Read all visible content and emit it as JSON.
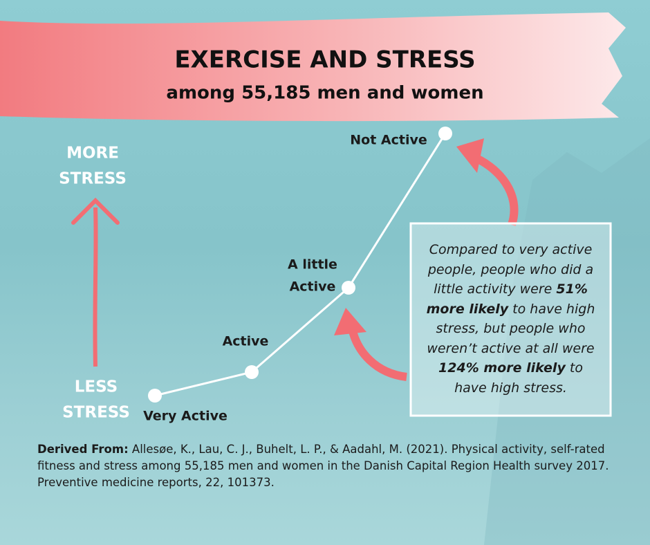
{
  "header": {
    "title": "EXERCISE AND STRESS",
    "subtitle": "among 55,185 men and women"
  },
  "axis": {
    "top": [
      "MORE",
      "STRESS"
    ],
    "bottom": [
      "LESS",
      "STRESS"
    ]
  },
  "points": [
    {
      "label": [
        "Very Active"
      ]
    },
    {
      "label": [
        "Active"
      ]
    },
    {
      "label": [
        "A little",
        "Active"
      ]
    },
    {
      "label": [
        "Not Active"
      ]
    }
  ],
  "callout": {
    "segments": [
      "Compared to very active people, people who did a little activity were ",
      "51% more likely",
      " to have high stress, but people who weren’t active at all were ",
      "124% more likely",
      " to have high stress."
    ]
  },
  "citation": {
    "label": "Derived From:",
    "text": "Allesøe, K., Lau, C. J., Buhelt, L. P., & Aadahl, M. (2021). Physical activity, self-rated fitness and stress among 55,185 men and women in the Danish Capital Region Health survey 2017. Preventive medicine reports, 22, 101373."
  }
}
